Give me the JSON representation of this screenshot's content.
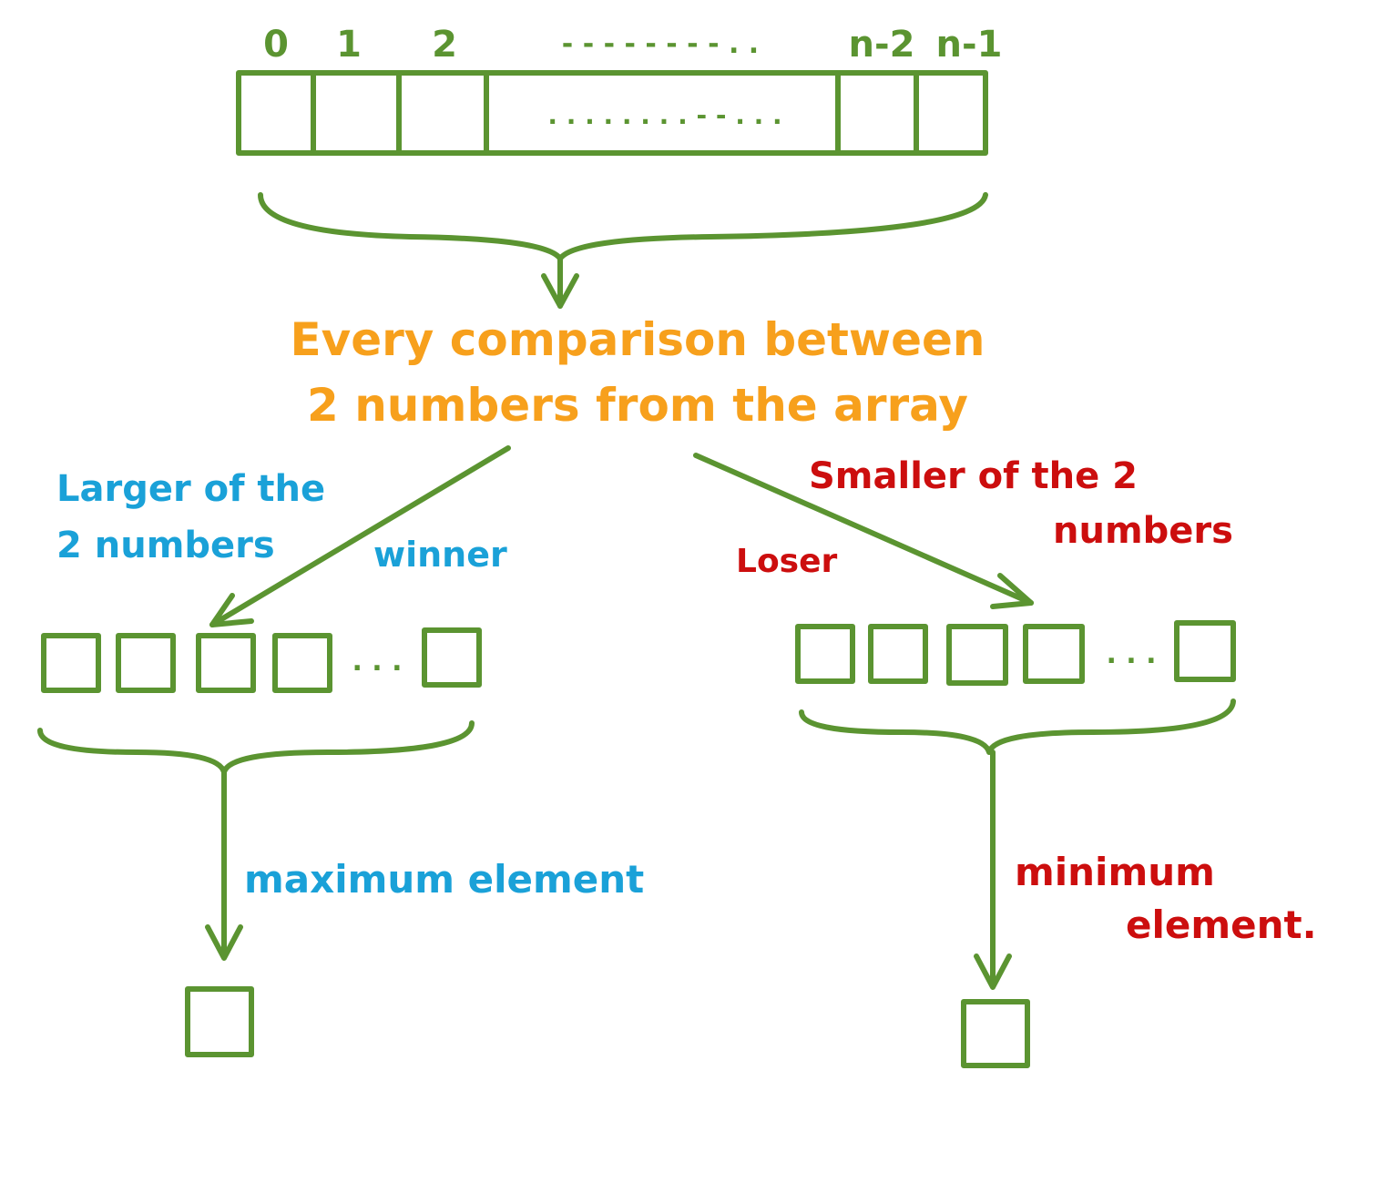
{
  "colors": {
    "shape": "#5b9431",
    "heading": "#f7a01c",
    "winner": "#1aa1d8",
    "loser": "#cc0e0e"
  },
  "array": {
    "indices": [
      "0",
      "1",
      "2",
      "- - -  - - - - -  . .",
      "n-2",
      "n-1"
    ],
    "middle_dots": ". . . . . . .  . - - . . ."
  },
  "heading": {
    "line1": "Every comparison between",
    "line2": "2 numbers from the array"
  },
  "left": {
    "desc_line1": "Larger of the",
    "desc_line2": "2 numbers",
    "tag": "winner",
    "ellipsis": ". . .",
    "result": "maximum element"
  },
  "right": {
    "desc_line1": "Smaller of the 2",
    "desc_line2": "numbers",
    "tag": "Loser",
    "ellipsis": ". . .",
    "result_line1": "minimum",
    "result_line2": "element."
  }
}
